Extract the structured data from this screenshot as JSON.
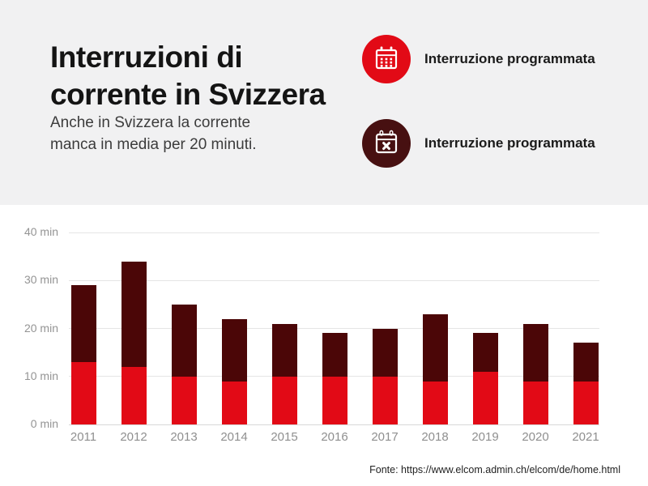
{
  "header": {
    "title_line1": "Interruzioni di",
    "title_line2": "corrente in Svizzera",
    "subtitle_line1": "Anche in Svizzera la corrente",
    "subtitle_line2": "manca in media per 20 minuti."
  },
  "legend": {
    "items": [
      {
        "label": "Interruzione programmata",
        "icon": "calendar-grid-icon",
        "circle_color": "#e20a16"
      },
      {
        "label": "Interruzione programmata",
        "icon": "calendar-x-icon",
        "circle_color": "#471011"
      }
    ]
  },
  "chart_data": {
    "type": "bar",
    "stacked": true,
    "title": "",
    "xlabel": "",
    "ylabel": "",
    "ylim": [
      0,
      40
    ],
    "grid": true,
    "legend_position": "top-right",
    "categories": [
      "2011",
      "2012",
      "2013",
      "2014",
      "2015",
      "2016",
      "2017",
      "2018",
      "2019",
      "2020",
      "2021"
    ],
    "series": [
      {
        "name": "Interruzione programmata",
        "color": "#e20a16",
        "values": [
          13,
          12,
          10,
          9,
          10,
          10,
          10,
          9,
          11,
          9,
          9
        ]
      },
      {
        "name": "Interruzione programmata",
        "color": "#4b0607",
        "values": [
          16,
          22,
          15,
          13,
          11,
          9,
          10,
          14,
          8,
          12,
          8
        ]
      }
    ],
    "totals": [
      29,
      34,
      25,
      22,
      21,
      19,
      20,
      23,
      19,
      21,
      17
    ],
    "yticks": [
      {
        "value": 0,
        "label": "0 min"
      },
      {
        "value": 10,
        "label": "10 min"
      },
      {
        "value": 20,
        "label": "20 min"
      },
      {
        "value": 30,
        "label": "30 min"
      },
      {
        "value": 40,
        "label": "40 min"
      }
    ]
  },
  "footer": {
    "source": "Fonte: https://www.elcom.admin.ch/elcom/de/home.html"
  },
  "colors": {
    "header_band": "#f1f1f2",
    "background": "#ffffff",
    "gridline": "#e5e5e5",
    "axis_text": "#949494",
    "red": "#e20a16",
    "dark_red": "#4b0607"
  }
}
